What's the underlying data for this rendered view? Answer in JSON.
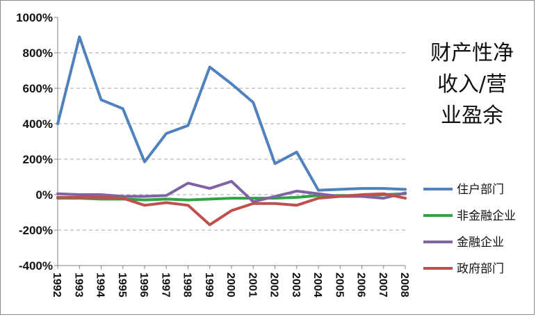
{
  "chart_data": {
    "type": "line",
    "title_lines": [
      "财产性净",
      "收入/营",
      "业盈余"
    ],
    "x": [
      "1992",
      "1993",
      "1994",
      "1995",
      "1996",
      "1997",
      "1998",
      "1999",
      "2000",
      "2001",
      "2002",
      "2003",
      "2004",
      "2005",
      "2006",
      "2007",
      "2008"
    ],
    "y_ticks": [
      "1000%",
      "800%",
      "600%",
      "400%",
      "200%",
      "0%",
      "-200%",
      "-400%"
    ],
    "ylim": [
      -400,
      1000
    ],
    "grid": true,
    "legend_position": "right",
    "series": [
      {
        "name": "住户部门",
        "color": "#4f81bd",
        "values": [
          400,
          890,
          535,
          485,
          185,
          345,
          390,
          720,
          625,
          520,
          175,
          240,
          25,
          30,
          35,
          35,
          30
        ]
      },
      {
        "name": "非金融企业",
        "color": "#2fa342",
        "values": [
          -20,
          -20,
          -25,
          -25,
          -30,
          -25,
          -30,
          -25,
          -20,
          -20,
          -20,
          -15,
          -5,
          -5,
          -5,
          0,
          5
        ]
      },
      {
        "name": "金融企业",
        "color": "#8064a2",
        "values": [
          5,
          0,
          0,
          -10,
          -10,
          -5,
          65,
          35,
          75,
          -40,
          -10,
          20,
          5,
          -10,
          -10,
          -20,
          10
        ]
      },
      {
        "name": "政府部门",
        "color": "#c0504d",
        "values": [
          -15,
          -15,
          -15,
          -20,
          -60,
          -45,
          -60,
          -170,
          -90,
          -50,
          -50,
          -60,
          -20,
          -10,
          0,
          5,
          -20
        ]
      }
    ]
  }
}
